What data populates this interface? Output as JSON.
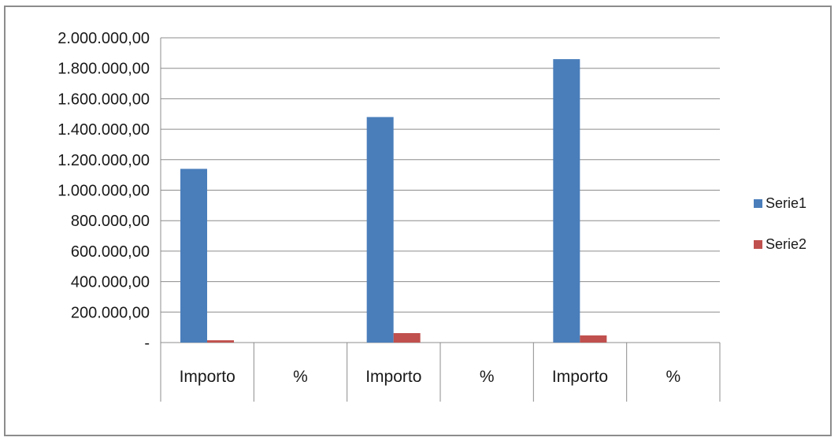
{
  "chart_data": {
    "type": "bar",
    "categories": [
      "Importo",
      "%",
      "Importo",
      "%",
      "Importo",
      "%"
    ],
    "series": [
      {
        "name": "Serie1",
        "color": "#4a7ebb",
        "values": [
          1140000,
          0,
          1480000,
          0,
          1860000,
          0
        ]
      },
      {
        "name": "Serie2",
        "color": "#c0504d",
        "values": [
          15000,
          0,
          62000,
          0,
          47000,
          0
        ]
      }
    ],
    "ylim": [
      0,
      2000000
    ],
    "yticks": [
      "-",
      "200.000,00",
      "400.000,00",
      "600.000,00",
      "800.000,00",
      "1.000.000,00",
      "1.200.000,00",
      "1.400.000,00",
      "1.600.000,00",
      "1.800.000,00",
      "2.000.000,00"
    ],
    "grid": true,
    "legend_position": "right"
  }
}
